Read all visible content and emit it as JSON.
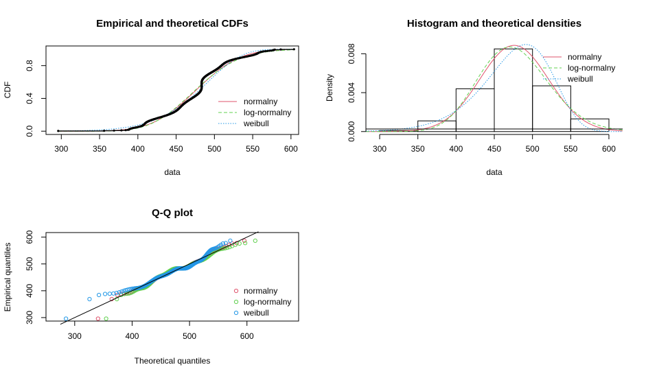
{
  "colors": {
    "normal": "#DF536B",
    "lognormal": "#61D04F",
    "weibull": "#2297E6"
  },
  "legend": [
    "normalny",
    "log-normalny",
    "weibull"
  ],
  "chart_data": [
    {
      "type": "line",
      "title": "Empirical and theoretical CDFs",
      "xlabel": "data",
      "ylabel": "CDF",
      "xlim": [
        280,
        610
      ],
      "ylim": [
        -0.04,
        1.04
      ],
      "xticks": [
        300,
        350,
        400,
        450,
        500,
        550,
        600
      ],
      "yticks": [
        0.0,
        0.4,
        0.8
      ],
      "legend_position": "right",
      "data_min": 296,
      "data_max": 604,
      "series": [
        {
          "name": "normalny",
          "dist": "normal",
          "mean": 476,
          "sd": 45
        },
        {
          "name": "log-normalny",
          "dist": "lognormal",
          "meanlog": 6.163,
          "sdlog": 0.097
        },
        {
          "name": "weibull",
          "dist": "weibull",
          "shape": 12,
          "scale": 495
        }
      ]
    },
    {
      "type": "bar",
      "title": "Histogram and theoretical densities",
      "xlabel": "data",
      "ylabel": "Density",
      "xlim": [
        282,
        618
      ],
      "ylim": [
        -0.0003,
        0.0088
      ],
      "xticks": [
        300,
        350,
        400,
        450,
        500,
        550,
        600
      ],
      "yticks": [
        0.0,
        0.004,
        0.008
      ],
      "legend_position": "top-right",
      "bins": [
        {
          "x0": 300,
          "x1": 350,
          "density": 0.0001
        },
        {
          "x0": 350,
          "x1": 400,
          "density": 0.0011
        },
        {
          "x0": 400,
          "x1": 450,
          "density": 0.0044
        },
        {
          "x0": 450,
          "x1": 500,
          "density": 0.0085
        },
        {
          "x0": 500,
          "x1": 550,
          "density": 0.0047
        },
        {
          "x0": 550,
          "x1": 600,
          "density": 0.0013
        }
      ]
    },
    {
      "type": "scatter",
      "title": "Q-Q plot",
      "xlabel": "Theoretical quantiles",
      "ylabel": "Empirical quantiles",
      "xlim": [
        250,
        690
      ],
      "ylim": [
        287,
        617
      ],
      "xticks": [
        300,
        400,
        500,
        600
      ],
      "yticks": [
        300,
        400,
        500,
        600
      ],
      "legend_position": "right",
      "ref_line": [
        [
          275,
          275
        ],
        [
          620,
          620
        ]
      ]
    }
  ]
}
